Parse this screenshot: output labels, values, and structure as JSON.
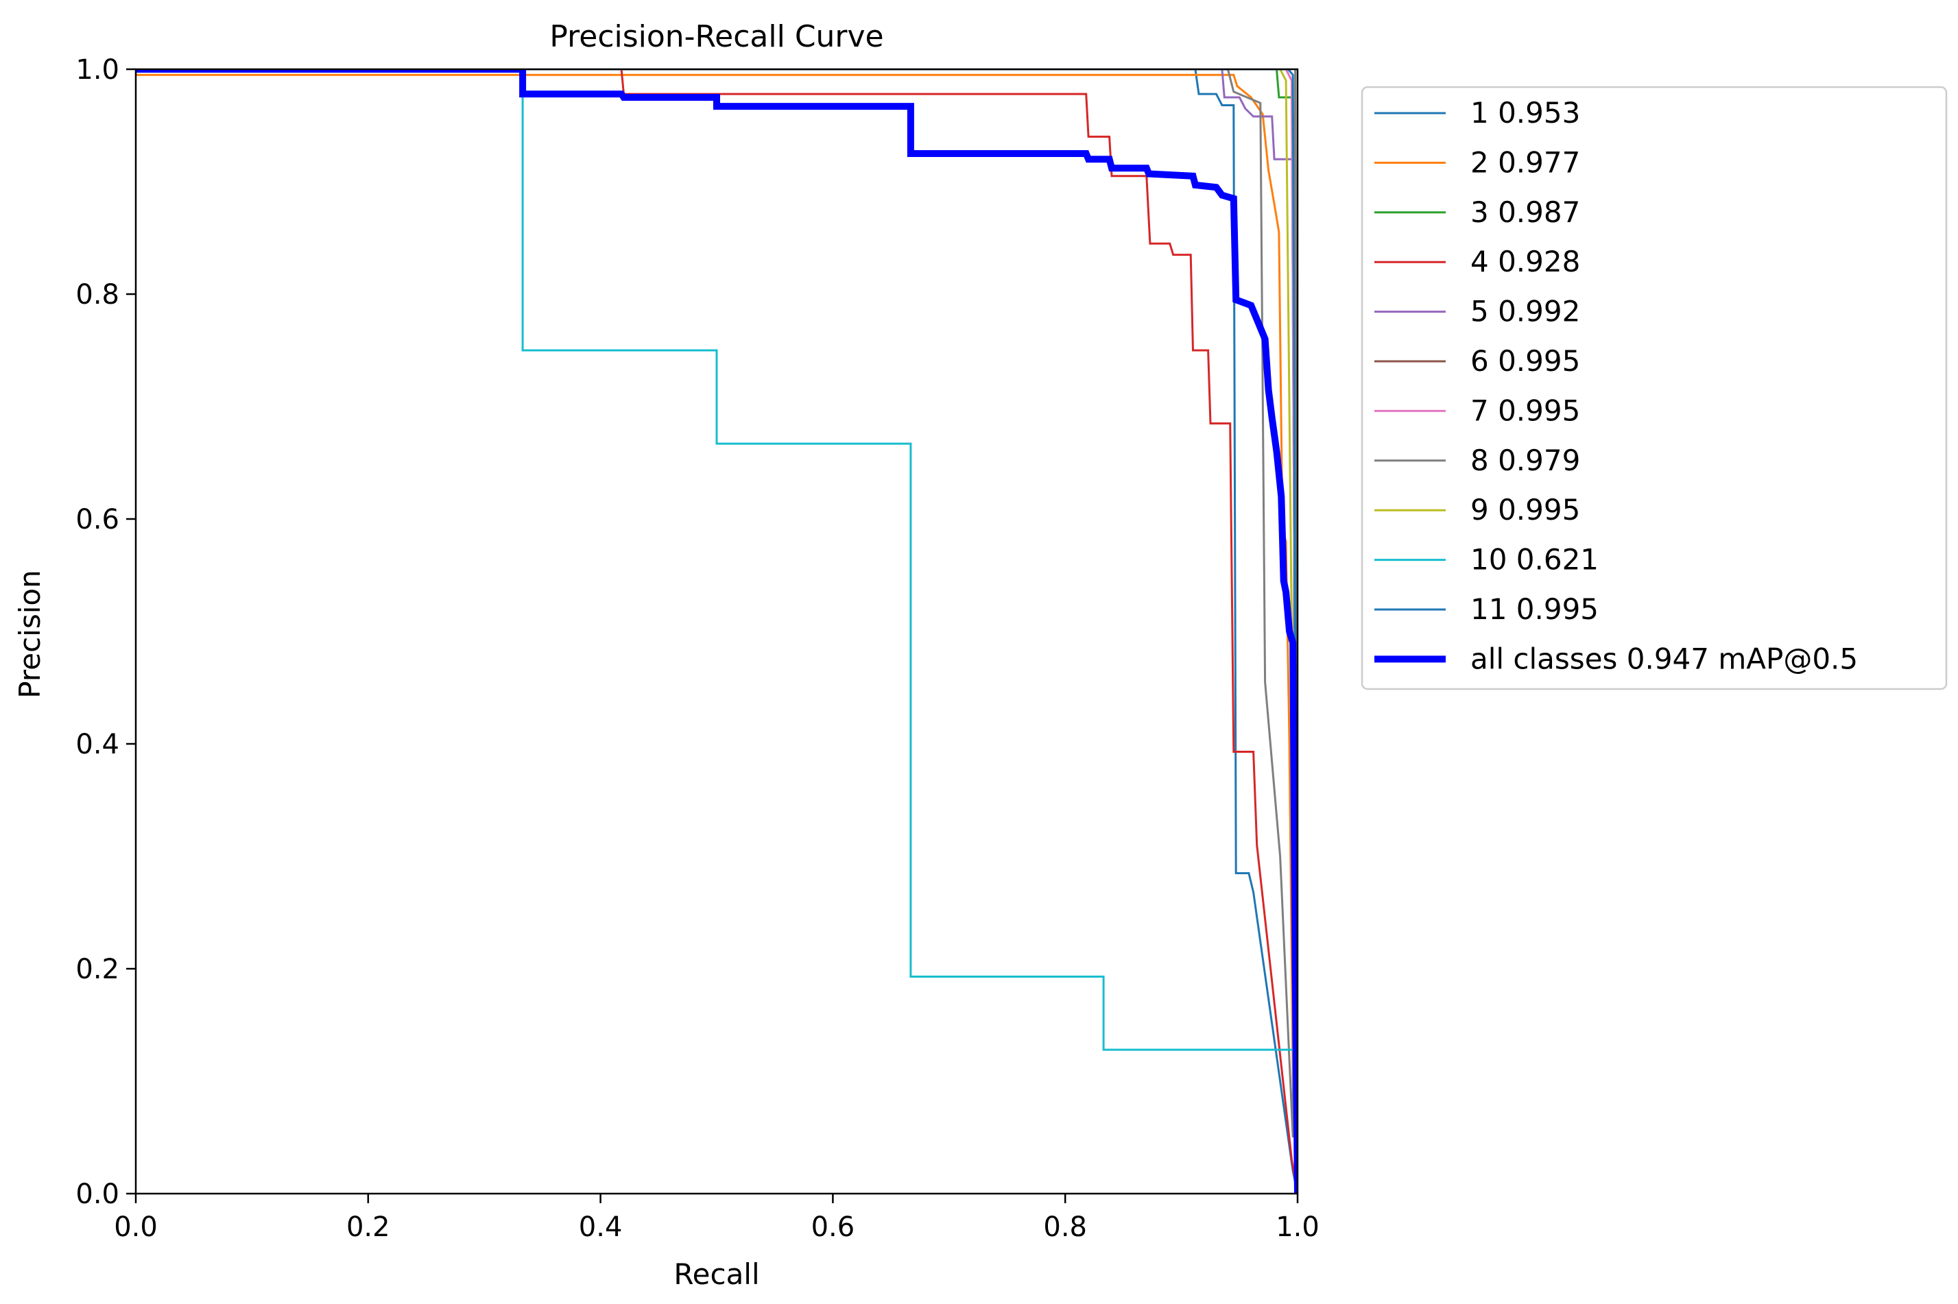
{
  "chart_data": {
    "type": "line",
    "title": "Precision-Recall Curve",
    "xlabel": "Recall",
    "ylabel": "Precision",
    "xlim": [
      0,
      1
    ],
    "ylim": [
      0,
      1
    ],
    "xticks": [
      0.0,
      0.2,
      0.4,
      0.6,
      0.8,
      1.0
    ],
    "yticks": [
      0.0,
      0.2,
      0.4,
      0.6,
      0.8,
      1.0
    ],
    "tick_labels_x": [
      "0.0",
      "0.2",
      "0.4",
      "0.6",
      "0.8",
      "1.0"
    ],
    "tick_labels_y": [
      "0.0",
      "0.2",
      "0.4",
      "0.6",
      "0.8",
      "1.0"
    ],
    "grid": false,
    "legend_position": "outside-top-right",
    "series": [
      {
        "name": "1 0.953",
        "color": "#1f77b4",
        "width": 1,
        "points": [
          [
            0,
            1
          ],
          [
            0.912,
            1
          ],
          [
            0.915,
            0.978
          ],
          [
            0.93,
            0.978
          ],
          [
            0.935,
            0.968
          ],
          [
            0.945,
            0.968
          ],
          [
            0.947,
            0.285
          ],
          [
            0.958,
            0.285
          ],
          [
            0.962,
            0.268
          ],
          [
            0.996,
            0.02
          ],
          [
            1,
            0
          ]
        ]
      },
      {
        "name": "2 0.977",
        "color": "#ff7f0e",
        "width": 1,
        "points": [
          [
            0,
            0.995
          ],
          [
            0.945,
            0.995
          ],
          [
            0.948,
            0.985
          ],
          [
            0.96,
            0.975
          ],
          [
            0.97,
            0.96
          ],
          [
            0.975,
            0.91
          ],
          [
            0.98,
            0.88
          ],
          [
            0.984,
            0.855
          ],
          [
            0.987,
            0.59
          ],
          [
            0.99,
            0.58
          ],
          [
            0.993,
            0.4
          ],
          [
            0.996,
            0.1
          ],
          [
            1,
            0
          ]
        ]
      },
      {
        "name": "3 0.987",
        "color": "#2ca02c",
        "width": 1,
        "points": [
          [
            0,
            1
          ],
          [
            0.982,
            1
          ],
          [
            0.984,
            0.975
          ],
          [
            0.995,
            0.975
          ],
          [
            0.997,
            0.94
          ],
          [
            1,
            0
          ]
        ]
      },
      {
        "name": "4 0.928",
        "color": "#d62728",
        "width": 1,
        "points": [
          [
            0,
            1
          ],
          [
            0.418,
            1
          ],
          [
            0.42,
            0.978
          ],
          [
            0.818,
            0.978
          ],
          [
            0.82,
            0.94
          ],
          [
            0.838,
            0.94
          ],
          [
            0.84,
            0.905
          ],
          [
            0.87,
            0.905
          ],
          [
            0.873,
            0.845
          ],
          [
            0.89,
            0.845
          ],
          [
            0.893,
            0.835
          ],
          [
            0.908,
            0.835
          ],
          [
            0.91,
            0.75
          ],
          [
            0.923,
            0.75
          ],
          [
            0.925,
            0.685
          ],
          [
            0.942,
            0.685
          ],
          [
            0.945,
            0.393
          ],
          [
            0.962,
            0.393
          ],
          [
            0.965,
            0.31
          ],
          [
            0.995,
            0.03
          ],
          [
            1,
            0
          ]
        ]
      },
      {
        "name": "5 0.992",
        "color": "#9467bd",
        "width": 1,
        "points": [
          [
            0,
            1
          ],
          [
            0.935,
            1
          ],
          [
            0.937,
            0.975
          ],
          [
            0.95,
            0.975
          ],
          [
            0.955,
            0.965
          ],
          [
            0.962,
            0.958
          ],
          [
            0.978,
            0.958
          ],
          [
            0.98,
            0.92
          ],
          [
            0.998,
            0.92
          ],
          [
            1,
            0
          ]
        ]
      },
      {
        "name": "6 0.995",
        "color": "#8c564b",
        "width": 1,
        "points": [
          [
            0,
            1
          ],
          [
            0.99,
            1
          ],
          [
            0.995,
            0.99
          ],
          [
            1,
            0
          ]
        ]
      },
      {
        "name": "7 0.995",
        "color": "#e377c2",
        "width": 1,
        "points": [
          [
            0,
            1
          ],
          [
            0.99,
            1
          ],
          [
            0.995,
            0.99
          ],
          [
            1,
            0
          ]
        ]
      },
      {
        "name": "8 0.979",
        "color": "#7f7f7f",
        "width": 1,
        "points": [
          [
            0,
            1
          ],
          [
            0.94,
            1
          ],
          [
            0.945,
            0.98
          ],
          [
            0.968,
            0.97
          ],
          [
            0.972,
            0.455
          ],
          [
            0.985,
            0.3
          ],
          [
            0.996,
            0.05
          ],
          [
            0.998,
            1
          ],
          [
            1,
            0
          ]
        ]
      },
      {
        "name": "9 0.995",
        "color": "#bcbd22",
        "width": 1,
        "points": [
          [
            0,
            1
          ],
          [
            0.985,
            1
          ],
          [
            0.99,
            0.99
          ],
          [
            1,
            0
          ]
        ]
      },
      {
        "name": "10 0.621",
        "color": "#17becf",
        "width": 1,
        "points": [
          [
            0,
            1
          ],
          [
            0.333,
            1
          ],
          [
            0.333,
            0.75
          ],
          [
            0.5,
            0.75
          ],
          [
            0.5,
            0.667
          ],
          [
            0.667,
            0.667
          ],
          [
            0.667,
            0.193
          ],
          [
            0.833,
            0.193
          ],
          [
            0.833,
            0.128
          ],
          [
            1,
            0.128
          ],
          [
            1,
            0
          ]
        ]
      },
      {
        "name": "11 0.995",
        "color": "#1f77b4",
        "width": 1,
        "points": [
          [
            0,
            1
          ],
          [
            0.992,
            1
          ],
          [
            0.996,
            0.995
          ],
          [
            1,
            0
          ]
        ]
      },
      {
        "name": "all classes 0.947 mAP@0.5",
        "color": "#0000ff",
        "width": 3,
        "points": [
          [
            0,
            1
          ],
          [
            0.333,
            1
          ],
          [
            0.333,
            0.978
          ],
          [
            0.418,
            0.978
          ],
          [
            0.42,
            0.975
          ],
          [
            0.5,
            0.975
          ],
          [
            0.5,
            0.967
          ],
          [
            0.667,
            0.967
          ],
          [
            0.667,
            0.925
          ],
          [
            0.818,
            0.925
          ],
          [
            0.82,
            0.92
          ],
          [
            0.838,
            0.92
          ],
          [
            0.84,
            0.912
          ],
          [
            0.87,
            0.912
          ],
          [
            0.872,
            0.907
          ],
          [
            0.91,
            0.905
          ],
          [
            0.912,
            0.897
          ],
          [
            0.93,
            0.895
          ],
          [
            0.935,
            0.888
          ],
          [
            0.945,
            0.885
          ],
          [
            0.947,
            0.795
          ],
          [
            0.96,
            0.79
          ],
          [
            0.968,
            0.77
          ],
          [
            0.972,
            0.76
          ],
          [
            0.975,
            0.715
          ],
          [
            0.978,
            0.69
          ],
          [
            0.982,
            0.66
          ],
          [
            0.986,
            0.62
          ],
          [
            0.988,
            0.545
          ],
          [
            0.99,
            0.535
          ],
          [
            0.993,
            0.5
          ],
          [
            0.996,
            0.49
          ],
          [
            0.998,
            0.2
          ],
          [
            1,
            0
          ]
        ]
      }
    ]
  }
}
